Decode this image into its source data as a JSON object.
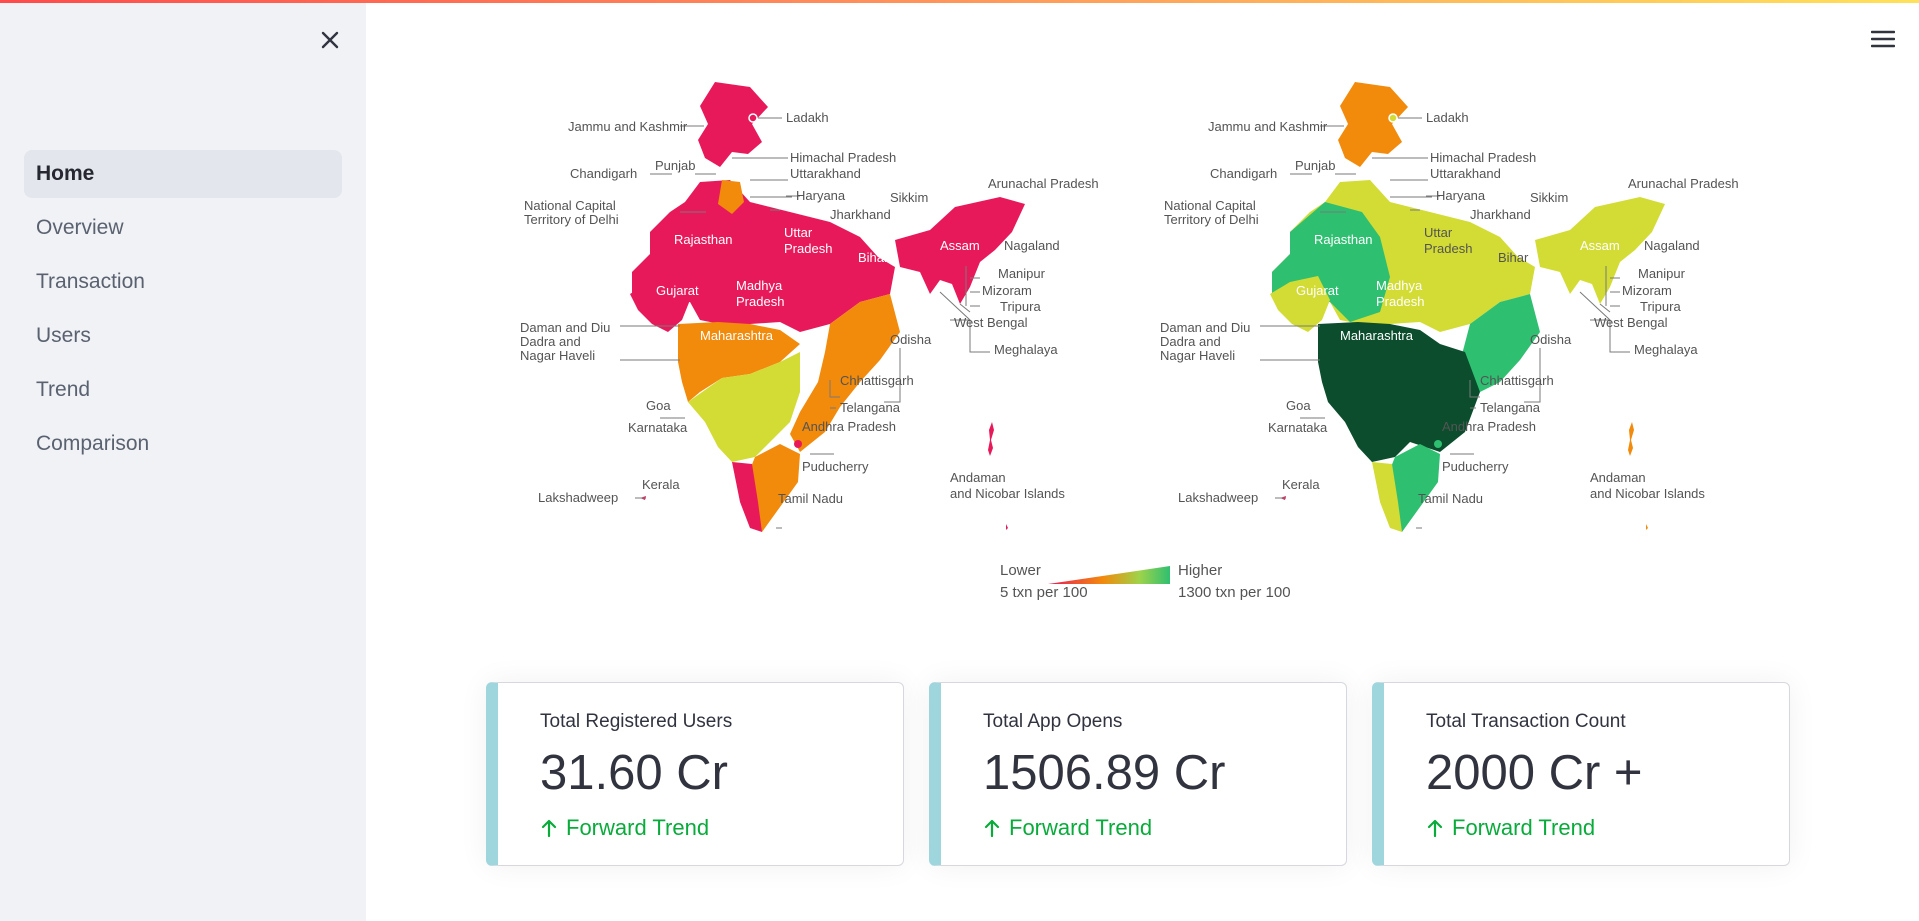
{
  "sidebar": {
    "items": [
      {
        "label": "Home",
        "active": true
      },
      {
        "label": "Overview",
        "active": false
      },
      {
        "label": "Transaction",
        "active": false
      },
      {
        "label": "Users",
        "active": false
      },
      {
        "label": "Trend",
        "active": false
      },
      {
        "label": "Comparison",
        "active": false
      }
    ],
    "close_icon": "close-icon"
  },
  "header": {
    "menu_icon": "hamburger-menu-icon"
  },
  "maps": {
    "states": {
      "ladakh": "Ladakh",
      "jammu_kashmir": "Jammu and Kashmir",
      "himachal": "Himachal Pradesh",
      "chandigarh": "Chandigarh",
      "punjab": "Punjab",
      "uttarakhand": "Uttarakhand",
      "haryana": "Haryana",
      "sikkim": "Sikkim",
      "arunachal": "Arunachal Pradesh",
      "delhi_1": "National Capital",
      "delhi_2": "Territory of Delhi",
      "jharkhand": "Jharkhand",
      "nagaland": "Nagaland",
      "rajasthan": "Rajasthan",
      "uttar": "Uttar",
      "pradesh": "Pradesh",
      "bihar": "Bihar",
      "assam": "Assam",
      "manipur": "Manipur",
      "mizoram": "Mizoram",
      "gujarat": "Gujarat",
      "madhya": "Madhya",
      "tripura": "Tripura",
      "west_bengal": "West Bengal",
      "daman": "Daman and Diu",
      "dadra": "Dadra and",
      "nagar": "Nagar Haveli",
      "maharashtra": "Maharashtra",
      "odisha": "Odisha",
      "meghalaya": "Meghalaya",
      "chhattisgarh": "Chhattisgarh",
      "goa": "Goa",
      "telangana": "Telangana",
      "karnataka": "Karnataka",
      "andhra": "Andhra Pradesh",
      "puducherry": "Puducherry",
      "andaman_1": "Andaman",
      "andaman_2": "and Nicobar Islands",
      "kerala": "Kerala",
      "lakshadweep": "Lakshadweep",
      "tamil": "Tamil Nadu"
    },
    "colors": {
      "pink": "#e8195a",
      "orange": "#f28a0c",
      "lime": "#d3dc35",
      "light_green": "#9fd34a",
      "green": "#2fbf71",
      "dark_green": "#0b4d2c"
    },
    "legend": {
      "low_label": "Lower",
      "low_value": "5 txn per 100",
      "high_label": "Higher",
      "high_value": "1300 txn per 100"
    }
  },
  "metrics": [
    {
      "label": "Total Registered Users",
      "value": "31.60 Cr",
      "delta": "Forward Trend"
    },
    {
      "label": "Total App Opens",
      "value": "1506.89 Cr",
      "delta": "Forward Trend"
    },
    {
      "label": "Total Transaction Count",
      "value": "2000 Cr +",
      "delta": "Forward Trend"
    }
  ]
}
